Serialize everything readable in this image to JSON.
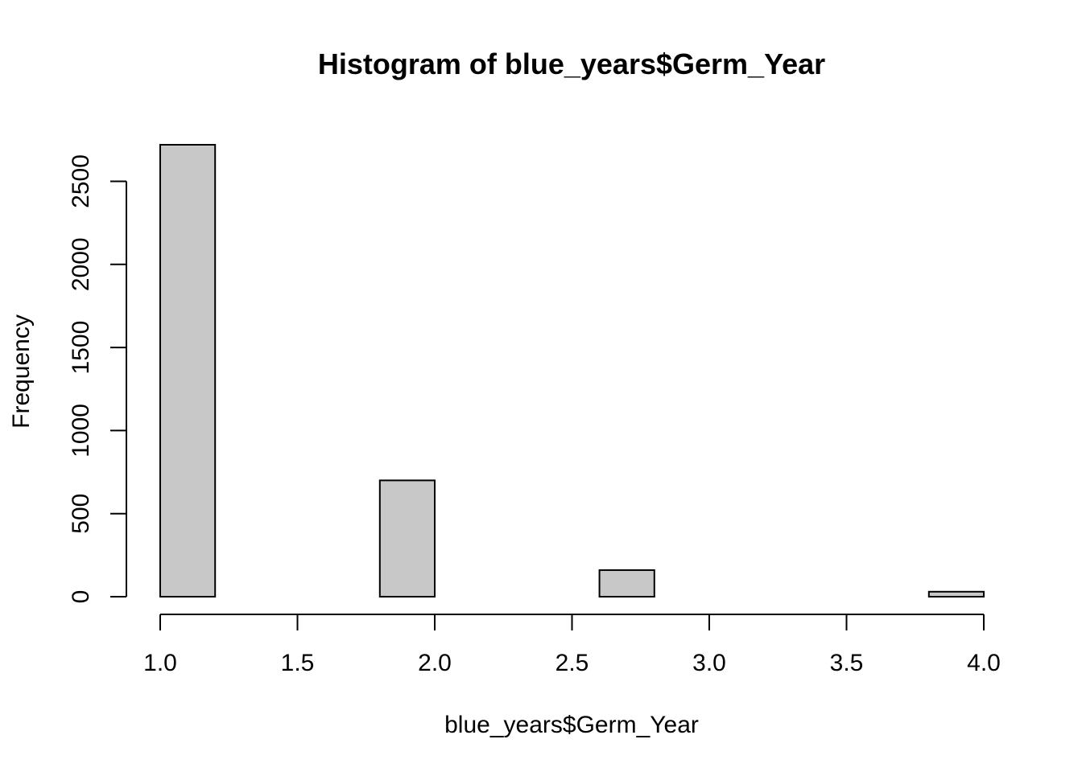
{
  "chart_data": {
    "type": "bar",
    "title": "Histogram of blue_years$Germ_Year",
    "xlabel": "blue_years$Germ_Year",
    "ylabel": "Frequency",
    "bin_edges": [
      1.0,
      1.2,
      1.4,
      1.6,
      1.8,
      2.0,
      2.2,
      2.4,
      2.6,
      2.8,
      3.0,
      3.2,
      3.4,
      3.6,
      3.8,
      4.0
    ],
    "values": [
      2720,
      0,
      0,
      0,
      700,
      0,
      0,
      0,
      160,
      0,
      0,
      0,
      0,
      0,
      30
    ],
    "xlim": [
      1.0,
      4.0
    ],
    "ylim": [
      0,
      2720
    ],
    "x_ticks": [
      1.0,
      1.5,
      2.0,
      2.5,
      3.0,
      3.5,
      4.0
    ],
    "x_tick_labels": [
      "1.0",
      "1.5",
      "2.0",
      "2.5",
      "3.0",
      "3.5",
      "4.0"
    ],
    "y_ticks": [
      0,
      500,
      1000,
      1500,
      2000,
      2500
    ],
    "y_tick_labels": [
      "0",
      "500",
      "1000",
      "1500",
      "2000",
      "2500"
    ],
    "bar_color": "#c8c8c8",
    "grid": false,
    "legend": "none"
  }
}
